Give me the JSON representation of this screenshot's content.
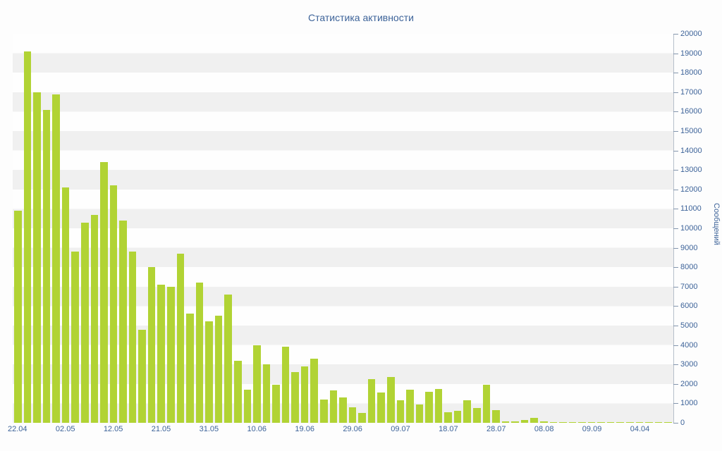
{
  "chart_data": {
    "type": "bar",
    "title": "Статистика активности",
    "ylabel": "Сообщений",
    "ylim": [
      0,
      20000
    ],
    "y_tick_step": 1000,
    "grid": "horizontal-stripes",
    "legend": "none",
    "x_ticks": [
      {
        "label": "22.04",
        "index": 0
      },
      {
        "label": "02.05",
        "index": 5
      },
      {
        "label": "12.05",
        "index": 10
      },
      {
        "label": "21.05",
        "index": 15
      },
      {
        "label": "31.05",
        "index": 20
      },
      {
        "label": "10.06",
        "index": 25
      },
      {
        "label": "19.06",
        "index": 30
      },
      {
        "label": "29.06",
        "index": 35
      },
      {
        "label": "09.07",
        "index": 40
      },
      {
        "label": "18.07",
        "index": 45
      },
      {
        "label": "28.07",
        "index": 50
      },
      {
        "label": "08.08",
        "index": 55
      },
      {
        "label": "09.09",
        "index": 60
      },
      {
        "label": "04.04",
        "index": 65
      }
    ],
    "values": [
      10900,
      19100,
      17000,
      16100,
      16900,
      12100,
      8800,
      10300,
      10700,
      13400,
      12200,
      10400,
      8800,
      4800,
      8000,
      7100,
      7000,
      8700,
      5600,
      7200,
      5200,
      5500,
      6600,
      3200,
      1700,
      4000,
      3000,
      1950,
      3900,
      2600,
      2900,
      3300,
      1200,
      1650,
      1300,
      800,
      500,
      2250,
      1550,
      2350,
      1150,
      1700,
      950,
      1600,
      1750,
      550,
      600,
      1150,
      750,
      1950,
      650,
      80,
      60,
      150,
      250,
      60,
      30,
      25,
      30,
      40,
      50,
      30,
      25,
      40,
      30,
      35,
      25,
      30,
      20
    ],
    "colors": {
      "bar": "#b1d334",
      "text": "#3d6399",
      "stripe": "#f0f0f0",
      "axis": "#b6bfca"
    }
  }
}
